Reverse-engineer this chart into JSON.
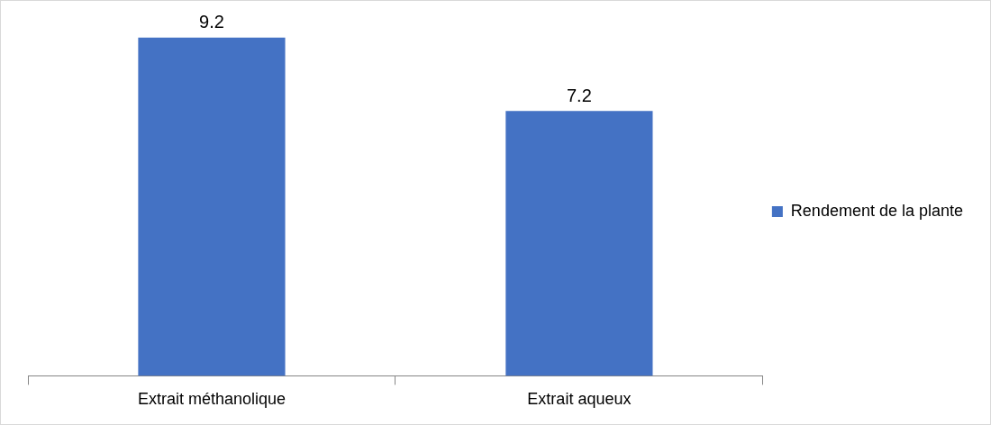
{
  "chart_data": {
    "type": "bar",
    "categories": [
      "Extrait méthanolique",
      "Extrait aqueux"
    ],
    "series": [
      {
        "name": "Rendement de la plante",
        "color": "#4472c4",
        "values": [
          9.2,
          7.2
        ]
      }
    ],
    "data_labels": true,
    "legend": "right",
    "grid": false,
    "tick_labels": "x"
  }
}
